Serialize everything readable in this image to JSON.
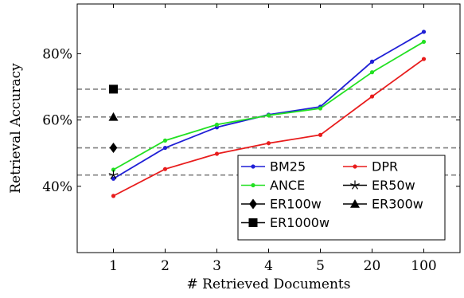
{
  "chart_data": {
    "type": "line",
    "xlabel": "# Retrieved Documents",
    "ylabel": "Retrieval Accuracy",
    "categories": [
      "1",
      "2",
      "3",
      "4",
      "5",
      "20",
      "100"
    ],
    "ylim": [
      20,
      95
    ],
    "yticks": [
      40,
      60,
      80
    ],
    "ytick_labels": [
      "40%",
      "60%",
      "80%"
    ],
    "grid": false,
    "legend_position": "lower-right",
    "series": [
      {
        "name": "BM25",
        "color": "#1f1fd6",
        "marker": "circle",
        "values": [
          42.3,
          51.6,
          57.8,
          61.6,
          64.0,
          77.6,
          86.6
        ]
      },
      {
        "name": "DPR",
        "color": "#e81c1c",
        "marker": "circle",
        "values": [
          37.1,
          45.2,
          49.8,
          53.0,
          55.5,
          67.1,
          78.4
        ]
      },
      {
        "name": "ANCE",
        "color": "#22e022",
        "marker": "circle",
        "values": [
          45.0,
          53.8,
          58.6,
          61.4,
          63.5,
          74.4,
          83.6
        ]
      }
    ],
    "single_points": [
      {
        "name": "ER50w",
        "x": "1",
        "value": 43.4,
        "marker": "star",
        "color": "#000000"
      },
      {
        "name": "ER100w",
        "x": "1",
        "value": 51.6,
        "marker": "diamond",
        "color": "#000000"
      },
      {
        "name": "ER300w",
        "x": "1",
        "value": 60.9,
        "marker": "triangle",
        "color": "#000000"
      },
      {
        "name": "ER1000w",
        "x": "1",
        "value": 69.3,
        "marker": "square",
        "color": "#000000"
      }
    ],
    "reference_lines": [
      {
        "value": 43.4,
        "style": "dashed",
        "color": "#808080"
      },
      {
        "value": 51.6,
        "style": "dashed",
        "color": "#808080"
      },
      {
        "value": 60.9,
        "style": "dashed",
        "color": "#808080"
      },
      {
        "value": 69.3,
        "style": "dashed",
        "color": "#808080"
      }
    ],
    "legend_entries": [
      {
        "label": "BM25",
        "kind": "line",
        "color": "#1f1fd6",
        "marker": "circle"
      },
      {
        "label": "DPR",
        "kind": "line",
        "color": "#e81c1c",
        "marker": "circle"
      },
      {
        "label": "ANCE",
        "kind": "line",
        "color": "#22e022",
        "marker": "circle"
      },
      {
        "label": "ER50w",
        "kind": "line",
        "color": "#000000",
        "marker": "star"
      },
      {
        "label": "ER100w",
        "kind": "line",
        "color": "#000000",
        "marker": "diamond"
      },
      {
        "label": "ER300w",
        "kind": "line",
        "color": "#000000",
        "marker": "triangle"
      },
      {
        "label": "ER1000w",
        "kind": "line",
        "color": "#000000",
        "marker": "square"
      }
    ]
  }
}
